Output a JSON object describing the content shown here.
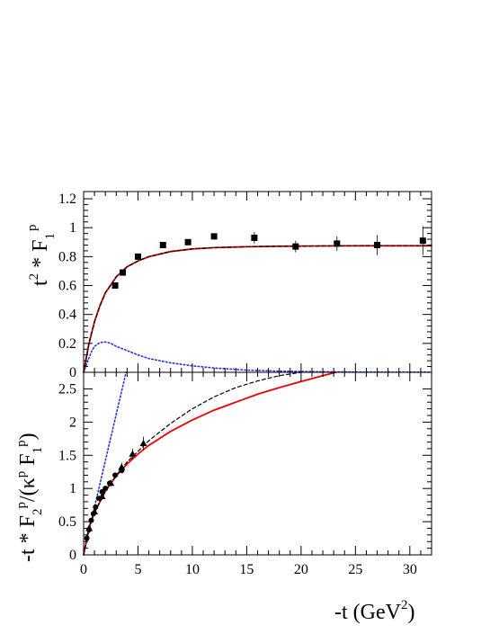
{
  "chart_data": [
    {
      "type": "scatter",
      "panel": "top",
      "xlim": [
        0,
        32
      ],
      "ylim": [
        0,
        1.25
      ],
      "ylabel": {
        "base": "t",
        "sup1": "2",
        "mid": " * F",
        "sub": "1",
        "sup2": "p"
      },
      "xticks": [
        0,
        5,
        10,
        15,
        20,
        25,
        30
      ],
      "yticks": [
        0,
        0.2,
        0.4,
        0.6,
        0.8,
        1,
        1.2
      ],
      "ytick_labels": [
        "0",
        "0.2",
        "0.4",
        "0.6",
        "0.8",
        "1",
        "1.2"
      ],
      "markers": {
        "data": "square"
      },
      "data": {
        "x": [
          2.9,
          3.6,
          5.0,
          7.3,
          9.6,
          12.0,
          15.7,
          19.5,
          23.3,
          27.0,
          31.2
        ],
        "y": [
          0.6,
          0.69,
          0.8,
          0.88,
          0.9,
          0.94,
          0.93,
          0.87,
          0.89,
          0.88,
          0.91
        ],
        "err": [
          0.01,
          0.01,
          0.01,
          0.01,
          0.015,
          0.015,
          0.04,
          0.04,
          0.05,
          0.07,
          0.1
        ]
      },
      "curves": {
        "solid": {
          "color": "#ee0000",
          "x": [
            0,
            0.5,
            1,
            1.5,
            2,
            3,
            4,
            5,
            6,
            8,
            10,
            12,
            15,
            18,
            22,
            26,
            30,
            32
          ],
          "y": [
            0,
            0.2,
            0.35,
            0.46,
            0.55,
            0.66,
            0.73,
            0.77,
            0.8,
            0.835,
            0.853,
            0.862,
            0.868,
            0.872,
            0.874,
            0.875,
            0.875,
            0.875
          ]
        },
        "dashed": {
          "color": "#000000",
          "x": [
            0,
            0.5,
            1,
            1.5,
            2,
            3,
            4,
            5,
            6,
            8,
            10,
            12,
            15,
            18,
            22,
            26,
            30,
            32
          ],
          "y": [
            0,
            0.2,
            0.35,
            0.46,
            0.55,
            0.66,
            0.73,
            0.77,
            0.8,
            0.835,
            0.853,
            0.862,
            0.868,
            0.872,
            0.874,
            0.875,
            0.875,
            0.875
          ]
        },
        "dotted": {
          "color": "#2233dd",
          "x": [
            0,
            0.3,
            0.7,
            1,
            1.5,
            2,
            2.5,
            3,
            4,
            5,
            6,
            8,
            10,
            12,
            15,
            18,
            22,
            26,
            32
          ],
          "y": [
            0,
            0.06,
            0.14,
            0.18,
            0.205,
            0.21,
            0.2,
            0.18,
            0.15,
            0.12,
            0.095,
            0.065,
            0.045,
            0.03,
            0.015,
            0.008,
            0.004,
            0.002,
            0.001
          ]
        }
      }
    },
    {
      "type": "scatter",
      "panel": "bottom",
      "xlim": [
        0,
        32
      ],
      "ylim": [
        0,
        2.75
      ],
      "xlabel": {
        "base": "-t (GeV",
        "sup": "2",
        "end": ")"
      },
      "ylabel": {
        "p1": "-t * F",
        "sub1": "2",
        "sup1": "p",
        "p2": "/(κ",
        "sup2": "p",
        "p3": " F",
        "sub2": "1",
        "sup3": "p",
        "p4": ")"
      },
      "xticks": [
        0,
        5,
        10,
        15,
        20,
        25,
        30
      ],
      "xtick_labels": [
        "0",
        "5",
        "10",
        "15",
        "20",
        "25",
        "30"
      ],
      "yticks": [
        0,
        0.5,
        1,
        1.5,
        2,
        2.5
      ],
      "ytick_labels": [
        "0",
        "0.5",
        "1",
        "1.5",
        "2",
        "2.5"
      ],
      "markers": {
        "circles": "circle",
        "triangles": "triangle"
      },
      "data": {
        "circles": {
          "x": [
            0.3,
            0.5,
            0.7,
            0.9,
            1.1,
            1.4,
            1.7,
            2.0,
            2.4,
            2.9,
            3.5
          ],
          "y": [
            0.25,
            0.38,
            0.52,
            0.62,
            0.72,
            0.85,
            0.95,
            1.0,
            1.08,
            1.2,
            1.27
          ]
        },
        "triangles": {
          "x": [
            0.5,
            1.0,
            1.7,
            2.5,
            3.5,
            4.5,
            5.5
          ],
          "y": [
            0.4,
            0.65,
            0.88,
            1.08,
            1.32,
            1.52,
            1.68
          ],
          "err": [
            0.03,
            0.04,
            0.05,
            0.05,
            0.07,
            0.08,
            0.1
          ]
        }
      },
      "curves": {
        "solid": {
          "color": "#ee0000",
          "x": [
            0,
            0.5,
            1,
            2,
            3,
            4,
            5,
            6,
            8,
            10,
            12,
            14,
            16,
            18,
            20,
            22,
            23.2
          ],
          "y": [
            0,
            0.42,
            0.64,
            0.96,
            1.19,
            1.37,
            1.52,
            1.65,
            1.86,
            2.03,
            2.18,
            2.3,
            2.42,
            2.52,
            2.61,
            2.7,
            2.75
          ]
        },
        "dashed": {
          "color": "#000000",
          "x": [
            0,
            0.5,
            1,
            2,
            3,
            4,
            5,
            6,
            8,
            10,
            12,
            14,
            16,
            18,
            20
          ],
          "y": [
            0,
            0.42,
            0.64,
            0.96,
            1.2,
            1.4,
            1.56,
            1.72,
            1.98,
            2.2,
            2.38,
            2.52,
            2.62,
            2.7,
            2.75
          ]
        },
        "dotted": {
          "color": "#2233dd",
          "x": [
            0,
            1,
            2,
            3,
            3.9
          ],
          "y": [
            0,
            0.72,
            1.42,
            2.12,
            2.75
          ]
        }
      }
    }
  ]
}
